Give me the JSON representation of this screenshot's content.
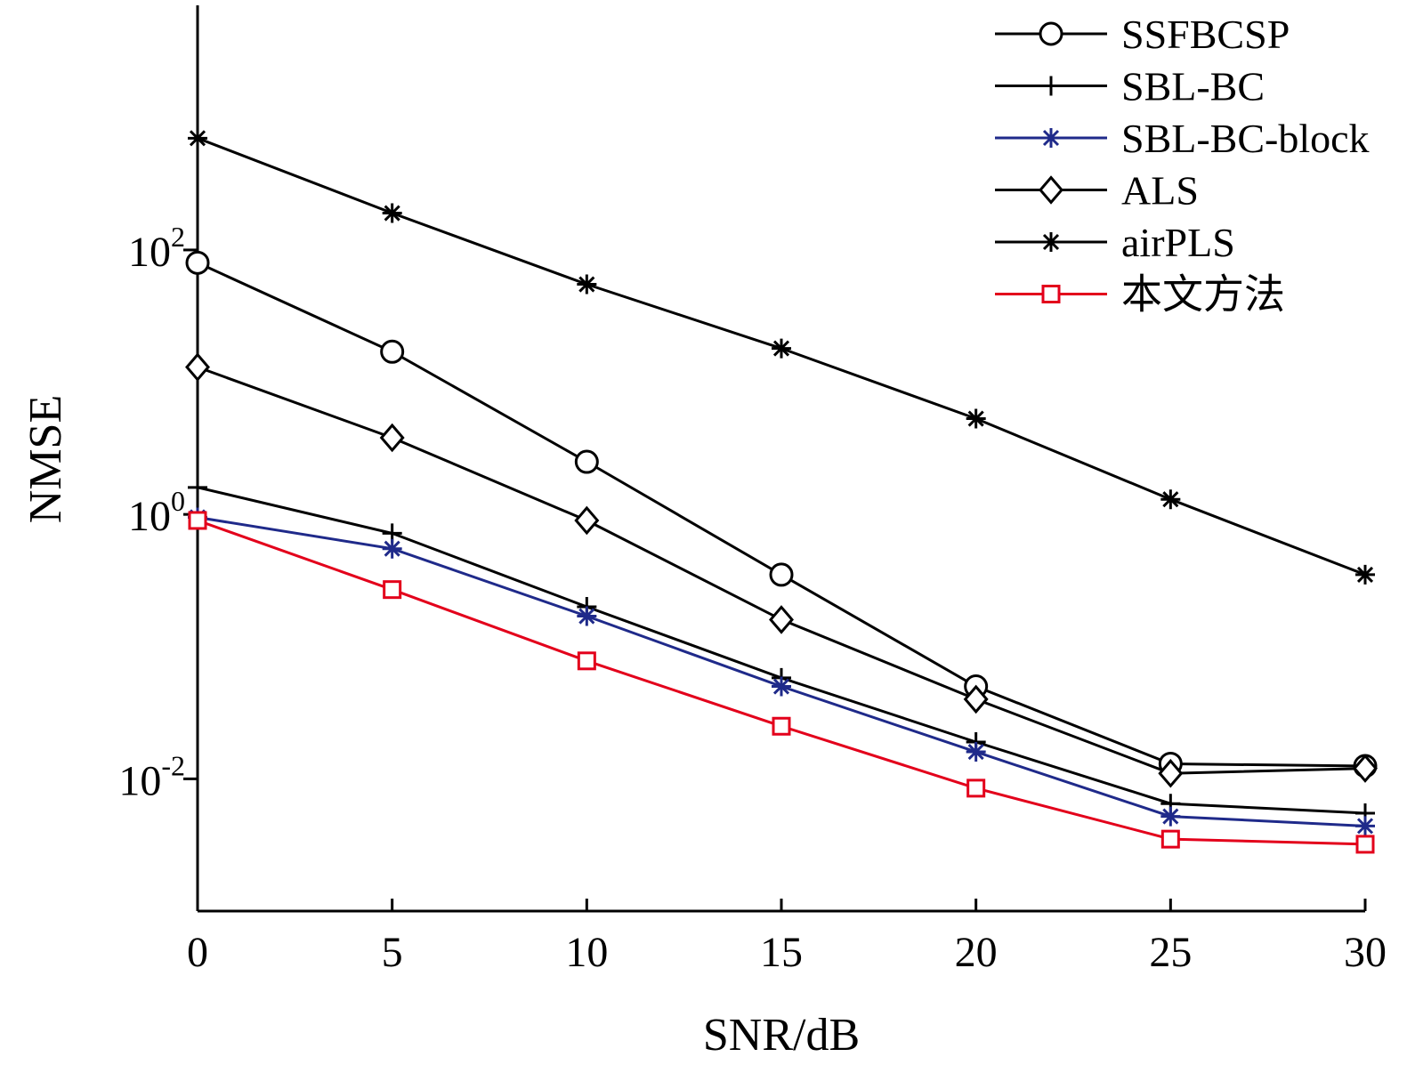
{
  "chart_data": {
    "type": "line",
    "xlabel": "SNR/dB",
    "ylabel": "NMSE",
    "x_ticks": [
      0,
      5,
      10,
      15,
      20,
      25,
      30
    ],
    "y_tick_exponents": [
      2,
      0,
      -2
    ],
    "y_tick_base": "10",
    "xlim": [
      0,
      30
    ],
    "ylim_log10": [
      -3,
      3.85
    ],
    "yscale": "log",
    "grid": false,
    "legend_position": "top-right",
    "x": [
      0,
      5,
      10,
      15,
      20,
      25,
      30
    ],
    "series": [
      {
        "name": "SSFBCSP",
        "marker": "circle",
        "color": "#000000",
        "values": [
          80,
          17,
          2.5,
          0.35,
          0.05,
          0.013,
          0.0125
        ]
      },
      {
        "name": "SBL-BC",
        "marker": "plus",
        "color": "#000000",
        "values": [
          1.6,
          0.72,
          0.2,
          0.058,
          0.019,
          0.0065,
          0.0055
        ]
      },
      {
        "name": "SBL-BC-block",
        "marker": "asterisk",
        "color": "#1f2a8a",
        "values": [
          0.95,
          0.55,
          0.17,
          0.05,
          0.016,
          0.0052,
          0.0044
        ]
      },
      {
        "name": "ALS",
        "marker": "diamond",
        "color": "#000000",
        "values": [
          13,
          3.8,
          0.9,
          0.16,
          0.04,
          0.011,
          0.012
        ]
      },
      {
        "name": "airPLS",
        "marker": "star",
        "color": "#000000",
        "values": [
          700,
          190,
          55,
          18,
          5.3,
          1.3,
          0.35
        ]
      },
      {
        "name": "本文方法",
        "marker": "square",
        "color": "#e3001b",
        "values": [
          0.9,
          0.27,
          0.078,
          0.025,
          0.0085,
          0.0035,
          0.0032
        ]
      }
    ]
  }
}
